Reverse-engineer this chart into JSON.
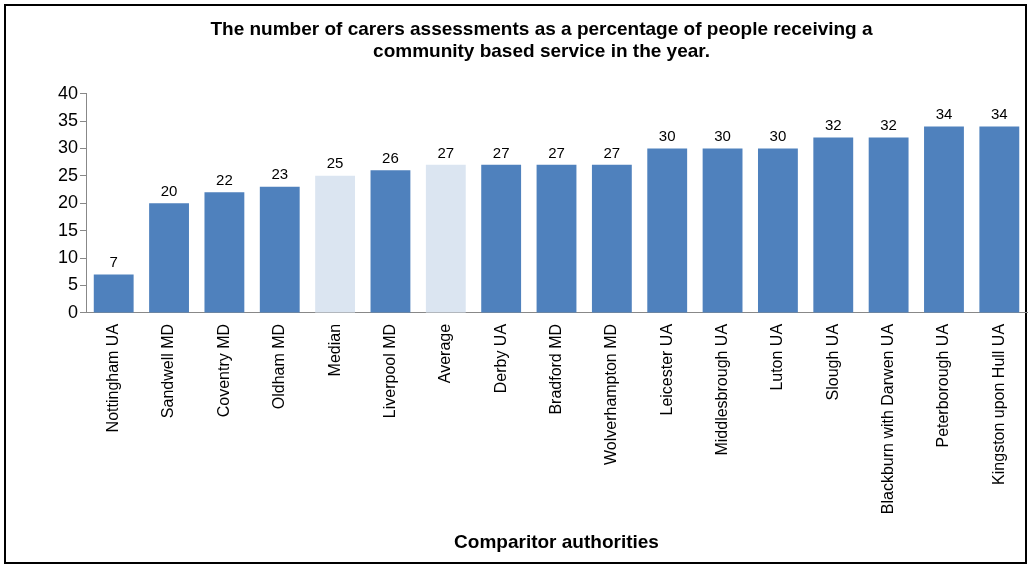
{
  "chart_data": {
    "type": "bar",
    "title": "The number of carers assessments as a percentage of people receiving a community based service in the year.",
    "xlabel": "Comparitor authorities",
    "categories": [
      "Nottingham UA",
      "Sandwell MD",
      "Coventry MD",
      "Oldham MD",
      "Median",
      "Liverpool MD",
      "Average",
      "Derby UA",
      "Bradford MD",
      "Wolverhampton MD",
      "Leicester UA",
      "Middlesbrough UA",
      "Luton UA",
      "Slough UA",
      "Blackburn with Darwen UA",
      "Peterborough UA",
      "Kingston upon Hull UA"
    ],
    "values": [
      7,
      20,
      22,
      23,
      25,
      26,
      27,
      27,
      27,
      27,
      30,
      30,
      30,
      32,
      32,
      34,
      34
    ],
    "colors": [
      "#4f81bd",
      "#4f81bd",
      "#4f81bd",
      "#4f81bd",
      "#dbe5f1",
      "#4f81bd",
      "#dbe5f1",
      "#4f81bd",
      "#4f81bd",
      "#4f81bd",
      "#4f81bd",
      "#4f81bd",
      "#4f81bd",
      "#4f81bd",
      "#4f81bd",
      "#4f81bd",
      "#4f81bd"
    ],
    "ylim": [
      0,
      40
    ],
    "yticks": [
      0,
      5,
      10,
      15,
      20,
      25,
      30,
      35,
      40
    ],
    "grid": false,
    "legend": false,
    "data_labels": true
  }
}
